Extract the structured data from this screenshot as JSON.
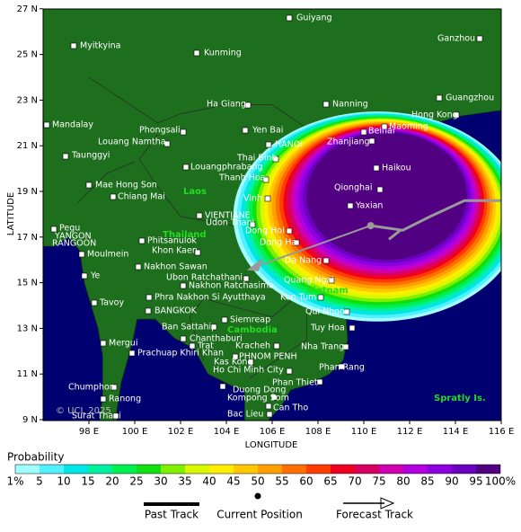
{
  "axes": {
    "x_label": "LONGITUDE",
    "y_label": "LATITUDE",
    "x_ticks": [
      "98 E",
      "100 E",
      "102 E",
      "104 E",
      "106 E",
      "108 E",
      "110 E",
      "112 E",
      "114 E",
      "116 E"
    ],
    "y_ticks": [
      "9 N",
      "11 N",
      "13 N",
      "15 N",
      "17 N",
      "19 N",
      "21 N",
      "23 N",
      "25 N",
      "27 N"
    ]
  },
  "cities": [
    "Guiyang",
    "Ganzhou",
    "Myitkyina",
    "Kunming",
    "Nanning",
    "Guangzhou",
    "Ha Giang",
    "Hong Kong",
    "Mandalay",
    "Phongsali",
    "Yen Bai",
    "Beihai",
    "Maoming",
    "Louang Namtha",
    "HANOI",
    "Zhanjiang",
    "Taunggyi",
    "Thai Binh",
    "Louangphrabang",
    "Haikou",
    "Thanh Hoa",
    "Mae Hong Son",
    "Qionghai",
    "Chiang Mai",
    "Vinh",
    "Yaxian",
    "VIENTIANE",
    "Udon Thani",
    "Pegu",
    "Dong Hoi",
    "YANGON",
    "Dong Ha",
    "RANGOON",
    "Phitsanulok",
    "Khon Kaen",
    "Moulmein",
    "Nakhon Sawan",
    "Da Nang",
    "Ubon Ratchathani",
    "Nakhon Ratchasima",
    "Quang Ngai",
    "Ye",
    "Kon Tum",
    "Phra Nakhon Si Ayutthaya",
    "Tavoy",
    "BANGKOK",
    "Qui Nhon",
    "Siemreap",
    "Ban Sattahip",
    "Tuy Hoa",
    "Chanthaburi",
    "Mergui",
    "Trat",
    "Kracheh",
    "Nha Trang",
    "Prachuap Khiri Khan",
    "PHNOM PENH",
    "Kas Kong",
    "Phan Rang",
    "Ho Chi Minh City",
    "Phan Thiet",
    "Chumphon",
    "Duong Dong",
    "Kompong Som",
    "Ranong",
    "Can Tho",
    "Bac Lieu",
    "Surat Thani"
  ],
  "regions": [
    "Laos",
    "Thailand",
    "Cambodia",
    "Vietnam",
    "Spratly Is."
  ],
  "copyright": "© UCL 2025",
  "legend": {
    "title": "Probability",
    "levels": [
      "1%",
      "5",
      "10",
      "15",
      "20",
      "25",
      "30",
      "35",
      "40",
      "45",
      "50",
      "55",
      "60",
      "65",
      "70",
      "75",
      "80",
      "85",
      "90",
      "95",
      "100%"
    ],
    "colors": [
      "#a0ffff",
      "#50f0ff",
      "#00e6e6",
      "#00f0a0",
      "#00f050",
      "#10e010",
      "#80f000",
      "#d8f800",
      "#ffee00",
      "#ffc800",
      "#ffa000",
      "#ff7000",
      "#ff3c00",
      "#f00020",
      "#d80060",
      "#d000b0",
      "#b000e0",
      "#8c00e0",
      "#6c00c0",
      "#500080"
    ]
  },
  "track_legend": [
    "Past Track",
    "Current Position",
    "Forecast Track"
  ]
}
